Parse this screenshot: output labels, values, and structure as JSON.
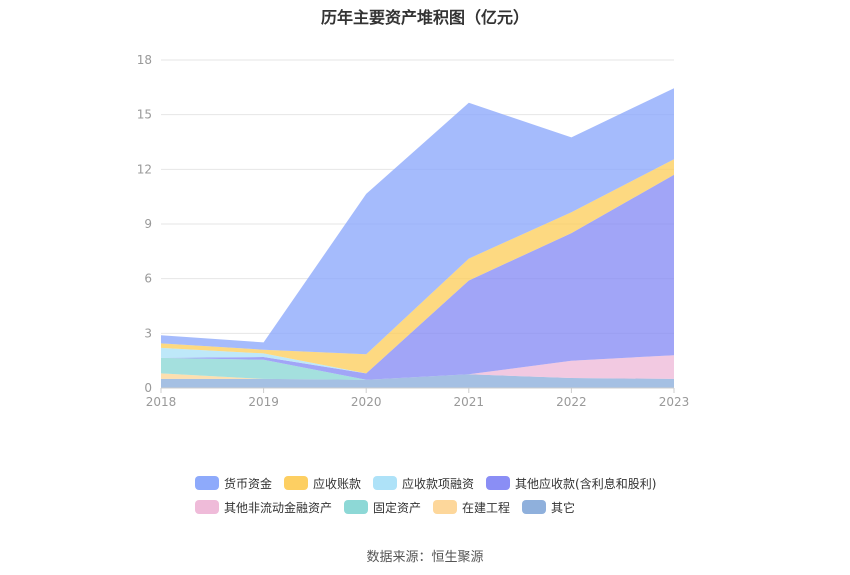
{
  "chart_data": {
    "type": "area",
    "stacked": true,
    "title": "历年主要资产堆积图（亿元）",
    "x": [
      "2018",
      "2019",
      "2020",
      "2021",
      "2022",
      "2023"
    ],
    "ylim": [
      0,
      18
    ],
    "yticks": [
      0,
      3,
      6,
      9,
      12,
      15,
      18
    ],
    "grid": true,
    "legend_position": "bottom",
    "series": [
      {
        "name": "其它",
        "color": "#8fb0dc",
        "values": [
          0.5,
          0.5,
          0.45,
          0.75,
          0.55,
          0.5
        ]
      },
      {
        "name": "在建工程",
        "color": "#fdd79b",
        "values": [
          0.3,
          0.0,
          0.0,
          0.0,
          0.0,
          0.0
        ]
      },
      {
        "name": "固定资产",
        "color": "#8dd8d6",
        "values": [
          0.85,
          1.05,
          0.0,
          0.0,
          0.0,
          0.0
        ]
      },
      {
        "name": "其他非流动金融资产",
        "color": "#efbbd9",
        "values": [
          0.0,
          0.0,
          0.0,
          0.0,
          0.95,
          1.3
        ]
      },
      {
        "name": "其他应收款(含利息和股利)",
        "color": "#8a8ef5",
        "values": [
          0.0,
          0.15,
          0.35,
          5.15,
          7.0,
          9.9
        ]
      },
      {
        "name": "应收款项融资",
        "color": "#aee2f8",
        "values": [
          0.55,
          0.2,
          0.0,
          0.0,
          0.0,
          0.0
        ]
      },
      {
        "name": "应收账款",
        "color": "#fdcf62",
        "values": [
          0.25,
          0.2,
          1.05,
          1.2,
          1.15,
          0.85
        ]
      },
      {
        "name": "货币资金",
        "color": "#8eaafb",
        "values": [
          0.45,
          0.4,
          8.8,
          8.55,
          4.1,
          3.9
        ]
      }
    ]
  },
  "legend_rows": [
    [
      "货币资金",
      "应收账款",
      "应收款项融资",
      "其他应收款(含利息和股利)"
    ],
    [
      "其他非流动金融资产",
      "固定资产",
      "在建工程",
      "其它"
    ]
  ],
  "source": "数据来源：恒生聚源"
}
